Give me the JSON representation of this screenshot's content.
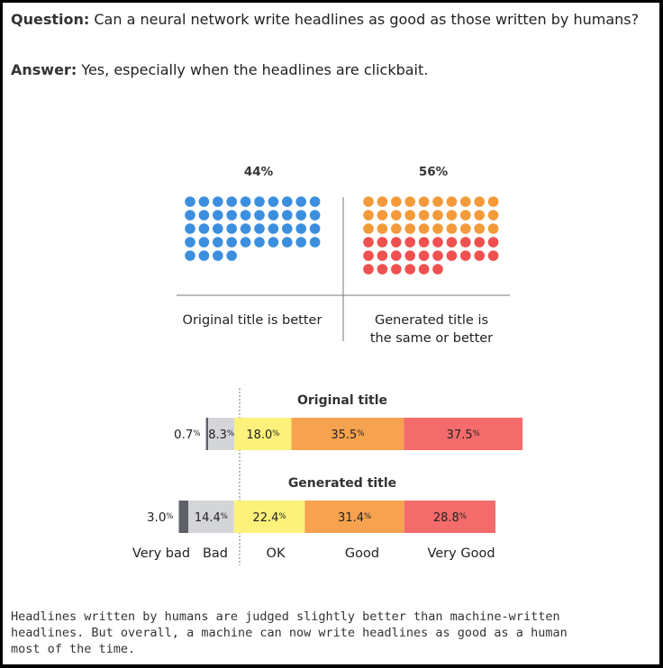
{
  "qa": {
    "question_label": "Question:",
    "question_text": "Can a neural network write headlines as good as those written by humans?",
    "answer_label": "Answer:",
    "answer_text": "Yes, especially when the headlines are clickbait."
  },
  "colors": {
    "blue": "#3c8fdf",
    "orange": "#f39a3b",
    "red": "#f05050",
    "very_bad": "#5e6168",
    "bad": "#d3d5d8",
    "ok": "#fbf17b",
    "good": "#f6a24e",
    "very_good": "#f46b6b"
  },
  "chart_data": [
    {
      "type": "waffle",
      "groups": [
        {
          "percent_label": "44%",
          "value": 44,
          "label_lines": [
            "Original title is better"
          ],
          "colors": [
            "blue"
          ],
          "counts": [
            44
          ]
        },
        {
          "percent_label": "56%",
          "value": 56,
          "label_lines": [
            "Generated title is",
            "the same or better"
          ],
          "colors": [
            "orange",
            "red"
          ],
          "counts": [
            30,
            26
          ]
        }
      ]
    },
    {
      "type": "bar",
      "stacked": true,
      "categories": [
        "Very bad",
        "Bad",
        "OK",
        "Good",
        "Very Good"
      ],
      "series": [
        {
          "name": "Original title",
          "values": [
            0.7,
            8.3,
            18.0,
            35.5,
            37.5
          ],
          "labels": [
            "0.7",
            "8.3",
            "18.0",
            "35.5",
            "37.5"
          ]
        },
        {
          "name": "Generated title",
          "values": [
            3.0,
            14.4,
            22.4,
            31.4,
            28.8
          ],
          "labels": [
            "3.0",
            "14.4",
            "22.4",
            "31.4",
            "28.8"
          ]
        }
      ],
      "unit": "%"
    }
  ],
  "caption": "Headlines written by humans are judged slightly better than machine-written\nheadlines. But overall, a machine can now write headlines as good as a human\nmost of the time."
}
